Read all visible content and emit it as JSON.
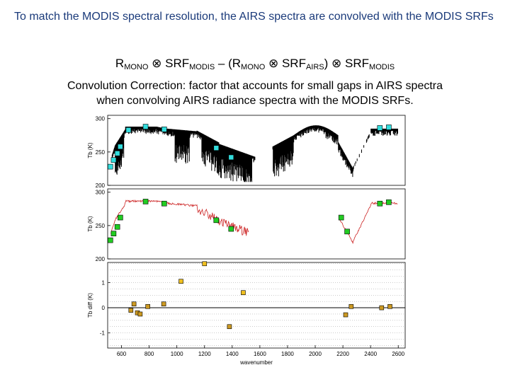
{
  "intro_text": "To match the MODIS spectral resolution, the AIRS spectra are convolved with the MODIS SRFs",
  "formula": {
    "r1": "R",
    "r1_sub": "MONO",
    "op1": " ⊗ ",
    "srf1": "SRF",
    "srf1_sub": "MODIS",
    "mid": " – (",
    "r2": "R",
    "r2_sub": "MONO",
    "op2": " ⊗ ",
    "srf2": "SRF",
    "srf2_sub": "AIRS",
    "close": ")",
    "op3": " ⊗ ",
    "srf3": "SRF",
    "srf3_sub": "MODIS"
  },
  "caption": {
    "line1": "Convolution Correction: factor that accounts for small gaps in AIRS spectra",
    "line2": "when convolving AIRS radiance spectra with the MODIS SRFs."
  },
  "colors": {
    "intro": "#1a3a7a",
    "cyan_marker": "#33dddd",
    "green_marker": "#22cc22",
    "orange_marker": "#cc9922",
    "yellow_marker": "#f0c020",
    "red_spectrum": "#cc2222"
  },
  "chart_data": [
    {
      "type": "line",
      "ylabel": "Tb (K)",
      "yticks": [
        "200",
        "250",
        "300"
      ],
      "ylim": [
        200,
        305
      ],
      "xlim": [
        650,
        2650
      ],
      "series": [
        {
          "markers": "cyan",
          "x": [
            668,
            690,
            715,
            735,
            790,
            905,
            1030,
            1380,
            1480,
            2480,
            2540
          ],
          "y": [
            228,
            238,
            248,
            258,
            283,
            288,
            284,
            256,
            242,
            286,
            287
          ]
        }
      ]
    },
    {
      "type": "line",
      "ylabel": "Tb (K)",
      "yticks": [
        "200",
        "250",
        "300"
      ],
      "ylim": [
        200,
        305
      ],
      "xlim": [
        650,
        2650
      ],
      "series": [
        {
          "markers": "green",
          "x": [
            668,
            690,
            715,
            735,
            905,
            1030,
            1380,
            1480,
            2220,
            2260,
            2480,
            2540
          ],
          "y": [
            228,
            238,
            248,
            262,
            286,
            283,
            258,
            245,
            262,
            241,
            283,
            285
          ]
        }
      ]
    },
    {
      "type": "scatter",
      "ylabel": "Tb diff (K)",
      "yticks": [
        "-1",
        "0",
        "1"
      ],
      "xticks": [
        "600",
        "800",
        "1000",
        "1200",
        "1400",
        "1600",
        "1800",
        "2000",
        "2200",
        "2400",
        "2600"
      ],
      "xlabel": "wavenumber",
      "xlim": [
        500,
        2650
      ],
      "ylim": [
        -1.6,
        1.8
      ],
      "series": [
        {
          "name": "",
          "x": [
            668,
            690,
            715,
            735,
            790,
            905,
            1030,
            1200,
            1380,
            1480,
            2220,
            2260,
            2480,
            2540
          ],
          "y": [
            -0.1,
            0.15,
            -0.2,
            -0.25,
            0.05,
            0.15,
            1.05,
            1.75,
            -0.75,
            0.6,
            -0.28,
            0.05,
            0.0,
            0.05
          ]
        }
      ]
    }
  ]
}
